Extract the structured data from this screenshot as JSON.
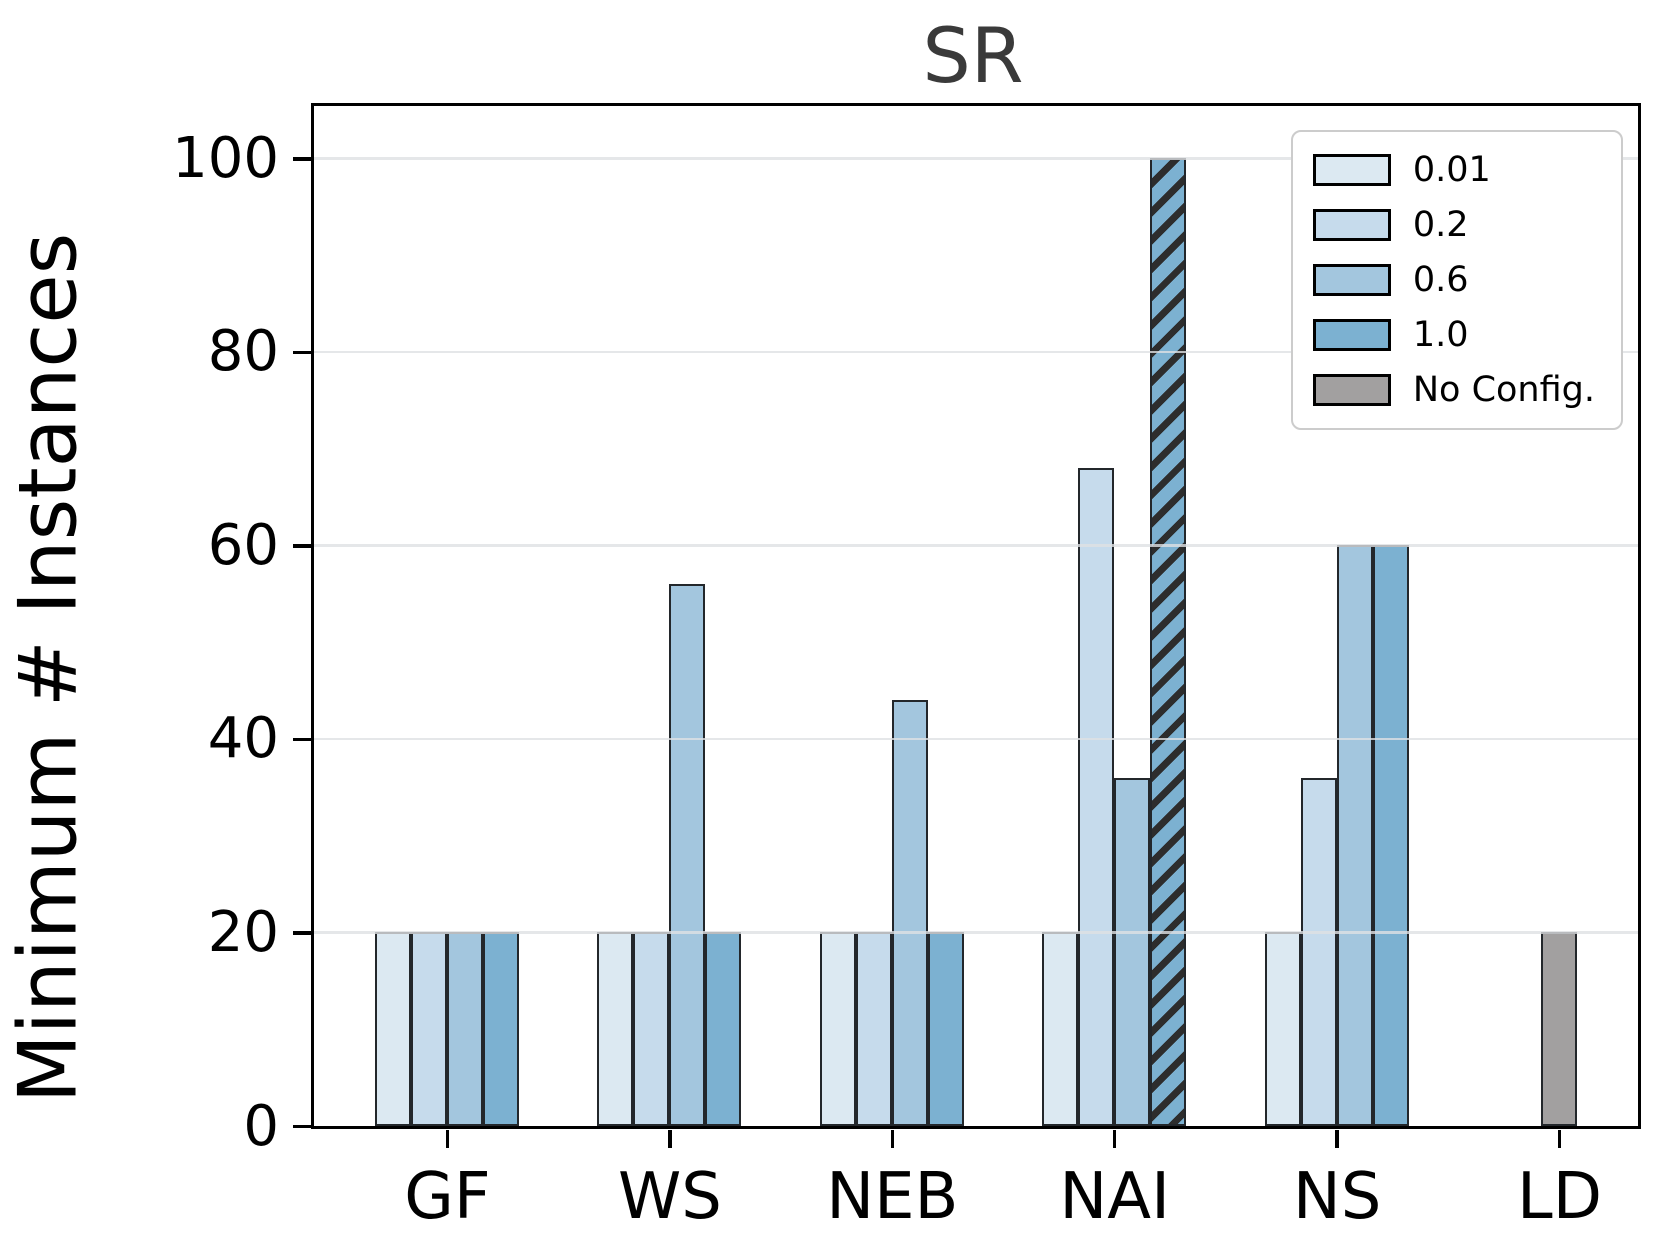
{
  "chart_data": {
    "type": "bar",
    "title": "SR",
    "xlabel": "",
    "ylabel": "Minimum # Instances",
    "categories": [
      "GF",
      "WS",
      "NEB",
      "NAI",
      "NS",
      "LD"
    ],
    "series": [
      {
        "name": "0.01",
        "color": "#dce9f2",
        "values": [
          20,
          20,
          20,
          20,
          20,
          null
        ]
      },
      {
        "name": "0.2",
        "color": "#c6dbec",
        "values": [
          20,
          20,
          20,
          68,
          36,
          null
        ]
      },
      {
        "name": "0.6",
        "color": "#a3c6de",
        "values": [
          20,
          56,
          44,
          36,
          60,
          null
        ]
      },
      {
        "name": "1.0",
        "color": "#7cb1d1",
        "values": [
          20,
          20,
          20,
          100,
          60,
          null
        ],
        "hatched": [
          false,
          false,
          false,
          true,
          false,
          false
        ]
      },
      {
        "name": "No Config.",
        "color": "#a2a0a0",
        "values": [
          null,
          null,
          null,
          null,
          null,
          20
        ],
        "centered_single_bar": true
      }
    ],
    "yticks": [
      0,
      20,
      40,
      60,
      80,
      100
    ],
    "ylim": [
      0,
      105.4
    ],
    "grid": "horizontal",
    "grid_on_top": true,
    "legend_position": "upper right",
    "colors": {
      "bar_edge": "#23272b",
      "hatch": "#2d2d2d",
      "title": "#3a3a3a",
      "gridline": "#dee1e3",
      "legend_border": "#cccccc"
    },
    "hatch_style": "diagonal-forward-slash"
  }
}
